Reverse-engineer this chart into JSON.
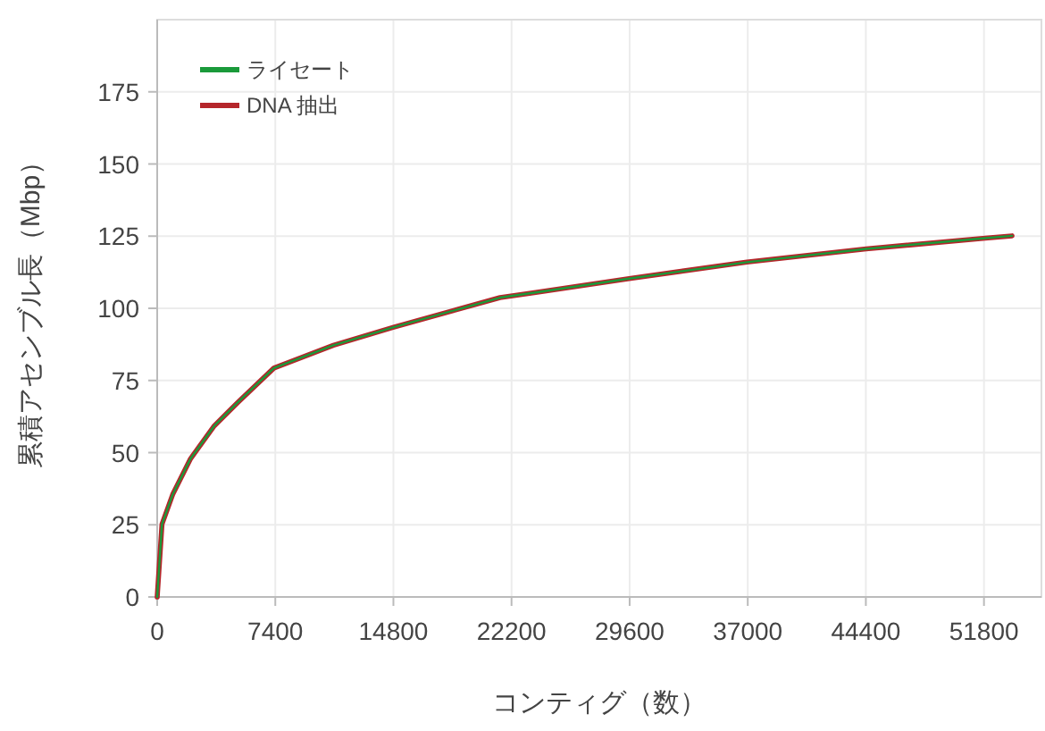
{
  "chart_data": {
    "type": "line",
    "xlabel": "コンティグ（数）",
    "ylabel": "累積アセンブル長（Mbp）",
    "x": [
      0,
      300,
      970,
      2090,
      3580,
      5070,
      7310,
      11040,
      14770,
      21480,
      23720,
      29570,
      36950,
      44420,
      51880,
      53560
    ],
    "series": [
      {
        "name": "ライセート",
        "color": "#1a9a3a",
        "values": [
          0,
          25.2,
          35.5,
          47.9,
          59.3,
          67.5,
          79.3,
          87.2,
          93.4,
          103.7,
          105.5,
          110.3,
          116,
          120.6,
          124.3,
          125.1
        ]
      },
      {
        "name": "DNA 抽出",
        "color": "#b5262b",
        "values": [
          0,
          25.2,
          35.5,
          47.9,
          59.3,
          67.5,
          79.3,
          87.2,
          93.4,
          103.7,
          105.5,
          110.3,
          116,
          120.6,
          124.3,
          125.1
        ]
      }
    ],
    "xlim": [
      0,
      55400
    ],
    "xticks": [
      0,
      7400,
      14800,
      22200,
      29600,
      37000,
      44400,
      51800
    ],
    "ylim": [
      0,
      200
    ],
    "yticks": [
      0,
      25,
      50,
      75,
      100,
      125,
      150,
      175
    ],
    "grid": true,
    "legend": "top left",
    "marker": "none",
    "line_style": "solid"
  }
}
